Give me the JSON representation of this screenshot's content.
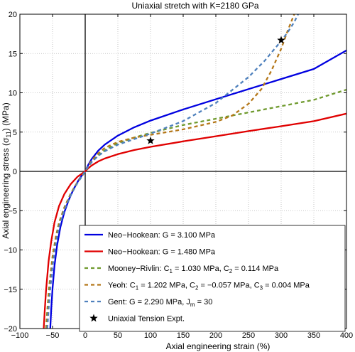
{
  "chart_data": {
    "type": "line",
    "title": "Uniaxial stretch with K=2180 GPa",
    "xlabel": "Axial engineering strain (%)",
    "ylabel_parts": [
      "Axial engineering stress (σ",
      "11",
      ") (MPa)"
    ],
    "xlim": [
      -100,
      400
    ],
    "ylim": [
      -20,
      20
    ],
    "x_ticks": [
      -100,
      -50,
      0,
      50,
      100,
      150,
      200,
      250,
      300,
      350,
      400
    ],
    "y_ticks": [
      -20,
      -15,
      -10,
      -5,
      0,
      5,
      10,
      15,
      20
    ],
    "grid": true,
    "legend_position": "bottom-right",
    "series": [
      {
        "legend": [
          {
            "t": "Neo−Hookean: G = 3.100 MPa"
          }
        ],
        "color": "#0000e0",
        "dash": "solid",
        "x": [
          -53.5,
          -52,
          -50,
          -47,
          -43,
          -38,
          -32,
          -25,
          -18,
          -10,
          -5,
          0,
          5,
          10,
          20,
          30,
          50,
          75,
          100,
          150,
          200,
          250,
          300,
          350,
          400
        ],
        "y": [
          -20,
          -17.5,
          -14.9,
          -12,
          -9.4,
          -7.1,
          -5.2,
          -3.6,
          -2.3,
          -1.1,
          -0.5,
          0,
          0.88,
          1.58,
          2.64,
          3.41,
          4.55,
          5.61,
          6.46,
          7.88,
          9.18,
          10.47,
          11.75,
          13.03,
          15.4
        ]
      },
      {
        "legend": [
          {
            "t": "Neo−Hookean: G = 1.480 MPa"
          }
        ],
        "color": "#e00000",
        "dash": "solid",
        "x": [
          -63.5,
          -62,
          -60,
          -56,
          -52,
          -47,
          -40,
          -32,
          -22,
          -12,
          0,
          5,
          10,
          20,
          30,
          50,
          75,
          100,
          150,
          200,
          250,
          300,
          350,
          400
        ],
        "y": [
          -20,
          -17.8,
          -15.2,
          -11.4,
          -8.9,
          -6.5,
          -4.4,
          -2.9,
          -1.6,
          -0.7,
          0,
          0.42,
          0.76,
          1.27,
          1.64,
          2.19,
          2.71,
          3.12,
          3.82,
          4.47,
          5.12,
          5.75,
          6.39,
          7.35
        ]
      },
      {
        "legend": [
          {
            "t": "Mooney−Rivlin: C"
          },
          {
            "t": "1",
            "sub": true
          },
          {
            "t": " = 1.030 MPa, C"
          },
          {
            "t": "2",
            "sub": true
          },
          {
            "t": " = 0.114 MPa"
          }
        ],
        "color": "#6f9a2e",
        "dash": "5,4",
        "x": [
          -60,
          -58,
          -55,
          -50,
          -45,
          -40,
          -32,
          -22,
          -12,
          0,
          5,
          10,
          20,
          30,
          50,
          75,
          100,
          150,
          200,
          250,
          300,
          350,
          400
        ],
        "y": [
          -20,
          -17.6,
          -14.5,
          -10.8,
          -8.3,
          -6.5,
          -4.6,
          -2.8,
          -1.4,
          0,
          0.66,
          1.2,
          2.05,
          2.7,
          3.6,
          4.3,
          4.9,
          5.9,
          6.7,
          7.5,
          8.3,
          9.1,
          10.4
        ]
      },
      {
        "legend": [
          {
            "t": "Yeoh: C"
          },
          {
            "t": "1",
            "sub": true
          },
          {
            "t": " = 1.202 MPa, C"
          },
          {
            "t": "2",
            "sub": true
          },
          {
            "t": " = −0.057 MPa, C"
          },
          {
            "t": "3",
            "sub": true
          },
          {
            "t": " = 0.004 MPa"
          }
        ],
        "color": "#b5781a",
        "dash": "5,4",
        "x": [
          -59,
          -57,
          -54,
          -50,
          -45,
          -40,
          -32,
          -22,
          -12,
          0,
          5,
          10,
          20,
          30,
          50,
          75,
          100,
          150,
          200,
          225,
          250,
          270,
          285,
          300,
          310,
          320
        ],
        "y": [
          -20,
          -17.5,
          -14.4,
          -11.1,
          -8.5,
          -6.6,
          -4.6,
          -2.8,
          -1.4,
          0,
          0.76,
          1.4,
          2.3,
          3.0,
          3.75,
          4.3,
          4.65,
          5.35,
          6.3,
          7.1,
          8.6,
          10.5,
          12.8,
          15.6,
          17.9,
          20
        ]
      },
      {
        "legend": [
          {
            "t": "Gent: G = 2.290 MPa, J"
          },
          {
            "t": "m",
            "sub": true
          },
          {
            "t": " = 30"
          }
        ],
        "color": "#4f81bd",
        "dash": "5,4",
        "x": [
          -58,
          -56,
          -53,
          -50,
          -45,
          -40,
          -32,
          -22,
          -12,
          0,
          5,
          10,
          20,
          30,
          50,
          75,
          100,
          150,
          200,
          250,
          275,
          300,
          310,
          320,
          326
        ],
        "y": [
          -20,
          -17.5,
          -14.6,
          -12.1,
          -9.2,
          -7.1,
          -4.9,
          -3.0,
          -1.5,
          0,
          0.66,
          1.19,
          1.98,
          2.56,
          3.4,
          4.1,
          4.8,
          6.4,
          8.7,
          12.0,
          14.1,
          16.6,
          17.7,
          19.0,
          20
        ]
      },
      {
        "legend": [
          {
            "t": "Uniaxial Tension Expt."
          }
        ],
        "color": "#000000",
        "marker": "star",
        "x": [
          100,
          300
        ],
        "y": [
          3.9,
          16.7
        ]
      }
    ]
  }
}
